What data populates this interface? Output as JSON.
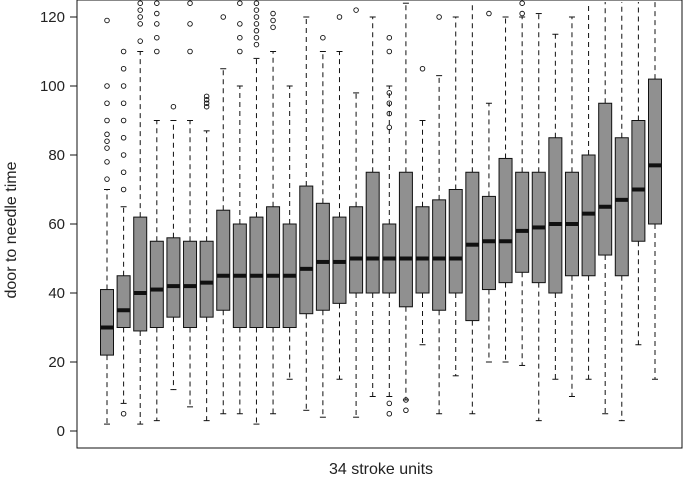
{
  "chart_data": {
    "type": "boxplot",
    "title": "",
    "xlabel": "34 stroke units",
    "ylabel": "door to needle time",
    "ylim": [
      0,
      125
    ],
    "yticks": [
      0,
      20,
      40,
      60,
      80,
      100,
      120
    ],
    "grid": false,
    "box_fill": "#909090",
    "stroke": "#111111",
    "boxes": [
      {
        "lw": 2,
        "q1": 22,
        "med": 30,
        "q3": 41,
        "uw": 70,
        "out": [
          73,
          78,
          82,
          84,
          86,
          90,
          95,
          100,
          119
        ]
      },
      {
        "lw": 8,
        "q1": 30,
        "med": 35,
        "q3": 45,
        "uw": 65,
        "out": [
          5,
          70,
          75,
          80,
          85,
          90,
          95,
          100,
          105,
          110
        ]
      },
      {
        "lw": 2,
        "q1": 29,
        "med": 40,
        "q3": 62,
        "uw": 110,
        "out": [
          113,
          118,
          120,
          122,
          124
        ]
      },
      {
        "lw": 3,
        "q1": 30,
        "med": 41,
        "q3": 55,
        "uw": 90,
        "out": [
          110,
          114,
          118,
          121,
          124
        ]
      },
      {
        "lw": 12,
        "q1": 33,
        "med": 42,
        "q3": 56,
        "uw": 90,
        "out": [
          94
        ]
      },
      {
        "lw": 7,
        "q1": 30,
        "med": 42,
        "q3": 55,
        "uw": 90,
        "out": [
          110,
          118,
          124
        ]
      },
      {
        "lw": 3,
        "q1": 33,
        "med": 43,
        "q3": 55,
        "uw": 87,
        "out": [
          94,
          95,
          96,
          97
        ]
      },
      {
        "lw": 5,
        "q1": 35,
        "med": 45,
        "q3": 64,
        "uw": 105,
        "out": [
          120
        ]
      },
      {
        "lw": 5,
        "q1": 30,
        "med": 45,
        "q3": 60,
        "uw": 100,
        "out": [
          110,
          114,
          118,
          124
        ]
      },
      {
        "lw": 2,
        "q1": 30,
        "med": 45,
        "q3": 62,
        "uw": 108,
        "out": [
          112,
          114,
          116,
          118,
          120,
          122,
          124
        ]
      },
      {
        "lw": 5,
        "q1": 30,
        "med": 45,
        "q3": 65,
        "uw": 110,
        "out": [
          117,
          119,
          121
        ]
      },
      {
        "lw": 15,
        "q1": 30,
        "med": 45,
        "q3": 60,
        "uw": 100,
        "out": []
      },
      {
        "lw": 6,
        "q1": 34,
        "med": 47,
        "q3": 71,
        "uw": 120,
        "out": []
      },
      {
        "lw": 4,
        "q1": 35,
        "med": 49,
        "q3": 66,
        "uw": 110,
        "out": [
          114
        ]
      },
      {
        "lw": 15,
        "q1": 37,
        "med": 49,
        "q3": 62,
        "uw": 110,
        "out": [
          120
        ]
      },
      {
        "lw": 4,
        "q1": 40,
        "med": 50,
        "q3": 65,
        "uw": 98,
        "out": [
          122
        ]
      },
      {
        "lw": 10,
        "q1": 40,
        "med": 50,
        "q3": 75,
        "uw": 120,
        "out": []
      },
      {
        "lw": 10,
        "q1": 40,
        "med": 50,
        "q3": 60,
        "uw": 100,
        "out": [
          5,
          8,
          88,
          92,
          95,
          98,
          110,
          114
        ]
      },
      {
        "lw": 9,
        "q1": 36,
        "med": 50,
        "q3": 75,
        "uw": 124,
        "out": [
          6,
          9
        ]
      },
      {
        "lw": 25,
        "q1": 40,
        "med": 50,
        "q3": 65,
        "uw": 90,
        "out": [
          105
        ]
      },
      {
        "lw": 5,
        "q1": 35,
        "med": 50,
        "q3": 67,
        "uw": 103,
        "out": [
          120
        ]
      },
      {
        "lw": 16,
        "q1": 40,
        "med": 50,
        "q3": 70,
        "uw": 120,
        "out": []
      },
      {
        "lw": 5,
        "q1": 32,
        "med": 54,
        "q3": 75,
        "uw": 125,
        "out": []
      },
      {
        "lw": 20,
        "q1": 41,
        "med": 55,
        "q3": 68,
        "uw": 95,
        "out": [
          121
        ]
      },
      {
        "lw": 20,
        "q1": 43,
        "med": 55,
        "q3": 79,
        "uw": 120,
        "out": []
      },
      {
        "lw": 19,
        "q1": 46,
        "med": 58,
        "q3": 75,
        "uw": 120,
        "out": [
          121,
          124
        ]
      },
      {
        "lw": 3,
        "q1": 43,
        "med": 59,
        "q3": 75,
        "uw": 121,
        "out": []
      },
      {
        "lw": 15,
        "q1": 40,
        "med": 60,
        "q3": 85,
        "uw": 115,
        "out": []
      },
      {
        "lw": 10,
        "q1": 45,
        "med": 60,
        "q3": 75,
        "uw": 120,
        "out": []
      },
      {
        "lw": 15,
        "q1": 45,
        "med": 63,
        "q3": 80,
        "uw": 125,
        "out": []
      },
      {
        "lw": 5,
        "q1": 51,
        "med": 65,
        "q3": 95,
        "uw": 125,
        "out": []
      },
      {
        "lw": 3,
        "q1": 45,
        "med": 67,
        "q3": 85,
        "uw": 125,
        "out": []
      },
      {
        "lw": 25,
        "q1": 55,
        "med": 70,
        "q3": 90,
        "uw": 125,
        "out": []
      },
      {
        "lw": 15,
        "q1": 60,
        "med": 77,
        "q3": 102,
        "uw": 125,
        "out": []
      }
    ]
  }
}
